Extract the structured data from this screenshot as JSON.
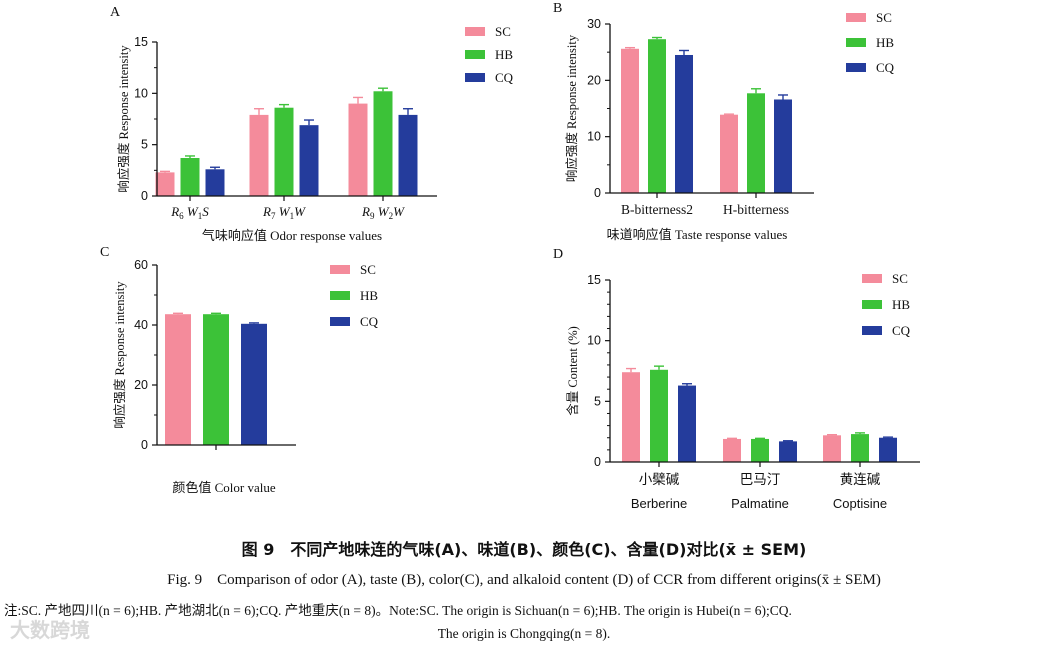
{
  "colors": {
    "SC": "#f48b9b",
    "HB": "#3cc238",
    "CQ": "#243c9c",
    "axis": "#111111"
  },
  "chart_data": [
    {
      "panel": "A",
      "type": "bar",
      "categories": [
        "R6 W1S",
        "R7 W1W",
        "R9 W2W"
      ],
      "category_parts": [
        [
          "R",
          "6",
          " W",
          "1",
          "S"
        ],
        [
          "R",
          "7",
          " W",
          "1",
          "W"
        ],
        [
          "R",
          "9",
          " W",
          "2",
          "W"
        ]
      ],
      "series": [
        {
          "name": "SC",
          "values": [
            2.3,
            7.9,
            9.0
          ],
          "errors": [
            0.1,
            0.6,
            0.6
          ]
        },
        {
          "name": "HB",
          "values": [
            3.7,
            8.6,
            10.2
          ],
          "errors": [
            0.2,
            0.3,
            0.3
          ]
        },
        {
          "name": "CQ",
          "values": [
            2.6,
            6.9,
            7.9
          ],
          "errors": [
            0.2,
            0.5,
            0.6
          ]
        }
      ],
      "ylim": [
        0,
        15
      ],
      "yticks": [
        0,
        5,
        10,
        15
      ],
      "ylabel": "响应强度 Response intensity",
      "xlabel": "气味响应值 Odor response values",
      "legend": [
        "SC",
        "HB",
        "CQ"
      ]
    },
    {
      "panel": "B",
      "type": "bar",
      "categories": [
        "B-bitterness2",
        "H-bitterness"
      ],
      "series": [
        {
          "name": "SC",
          "values": [
            25.6,
            13.9
          ],
          "errors": [
            0.2,
            0.1
          ]
        },
        {
          "name": "HB",
          "values": [
            27.3,
            17.7
          ],
          "errors": [
            0.3,
            0.8
          ]
        },
        {
          "name": "CQ",
          "values": [
            24.5,
            16.6
          ],
          "errors": [
            0.8,
            0.8
          ]
        }
      ],
      "ylim": [
        0,
        30
      ],
      "yticks": [
        0,
        10,
        20,
        30
      ],
      "ylabel": "响应强度 Response intensity",
      "xlabel": "味道响应值 Taste response values",
      "legend": [
        "SC",
        "HB",
        "CQ"
      ]
    },
    {
      "panel": "C",
      "type": "bar",
      "categories": [
        ""
      ],
      "series": [
        {
          "name": "SC",
          "values": [
            43.6
          ],
          "errors": [
            0.3
          ]
        },
        {
          "name": "HB",
          "values": [
            43.6
          ],
          "errors": [
            0.3
          ]
        },
        {
          "name": "CQ",
          "values": [
            40.4
          ],
          "errors": [
            0.3
          ]
        }
      ],
      "ylim": [
        0,
        60
      ],
      "yticks": [
        0,
        20,
        40,
        60
      ],
      "ylabel": "响应强度 Response intensity",
      "xlabel": "颜色值 Color value",
      "legend": [
        "SC",
        "HB",
        "CQ"
      ]
    },
    {
      "panel": "D",
      "type": "bar",
      "categories": [
        "小檗碱",
        "巴马汀",
        "黄连碱"
      ],
      "categories_en": [
        "Berberine",
        "Palmatine",
        "Coptisine"
      ],
      "series": [
        {
          "name": "SC",
          "values": [
            7.4,
            1.9,
            2.2
          ],
          "errors": [
            0.3,
            0.05,
            0.05
          ]
        },
        {
          "name": "HB",
          "values": [
            7.6,
            1.9,
            2.3
          ],
          "errors": [
            0.3,
            0.05,
            0.1
          ]
        },
        {
          "name": "CQ",
          "values": [
            6.3,
            1.7,
            2.0
          ],
          "errors": [
            0.15,
            0.05,
            0.05
          ]
        }
      ],
      "ylim": [
        0,
        15
      ],
      "yticks": [
        0,
        5,
        10,
        15
      ],
      "ylabel": "含量 Content (%)",
      "xlabel": "",
      "legend": [
        "SC",
        "HB",
        "CQ"
      ]
    }
  ],
  "caption_cn": "图 9　不同产地味连的气味(A)、味道(B)、颜色(C)、含量(D)对比(x̄ ± SEM)",
  "caption_en": "Fig. 9　Comparison of odor (A), taste (B), color(C), and alkaloid content (D) of CCR from different origins(x̄ ± SEM)",
  "note_line1": "注:SC. 产地四川(n = 6);HB. 产地湖北(n = 6);CQ. 产地重庆(n = 8)。Note:SC. The origin is Sichuan(n = 6);HB. The origin is Hubei(n = 6);CQ.",
  "note_line2": "The origin is Chongqing(n = 8).",
  "watermark": "大数跨境"
}
